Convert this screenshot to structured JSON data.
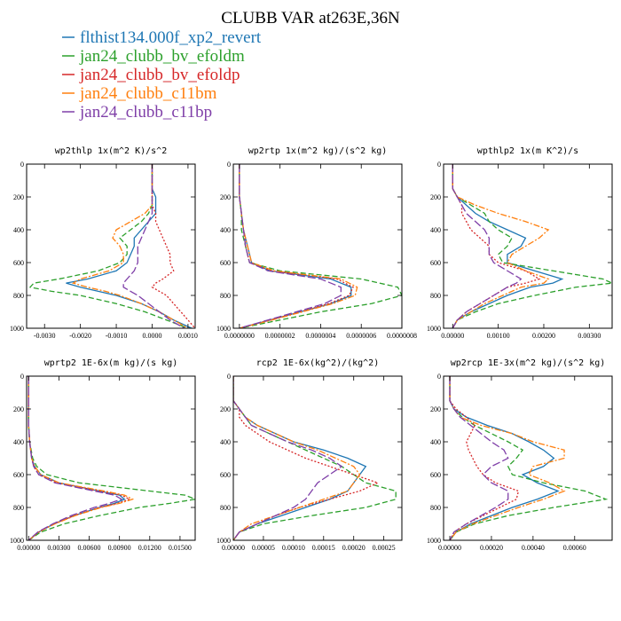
{
  "figure_title": "CLUBB VAR at263E,36N",
  "legend": [
    {
      "name": "flthist134.000f_xp2_revert",
      "color": "#1f77b4",
      "dash": "solid"
    },
    {
      "name": "jan24_clubb_bv_efoldm",
      "color": "#2ca02c",
      "dash": "dashed"
    },
    {
      "name": "jan24_clubb_bv_efoldp",
      "color": "#d62728",
      "dash": "dotted"
    },
    {
      "name": "jan24_clubb_c11bm",
      "color": "#ff7f0e",
      "dash": "dashdot"
    },
    {
      "name": "jan24_clubb_c11bp",
      "color": "#7f3fa8",
      "dash": "longdash"
    }
  ],
  "chart_data": [
    {
      "type": "line",
      "title": "wp2thlp  1x(m^2 K)/s^2",
      "xlim": [
        -0.0035,
        0.0012
      ],
      "ylim": [
        1000,
        0
      ],
      "xticks": [
        -0.003,
        -0.002,
        -0.001,
        0,
        0.001
      ],
      "xtick_labels": [
        "-0.0030",
        "-0.0020",
        "-0.0010",
        "0.0000",
        "0.0010"
      ],
      "yticks": [
        0,
        200,
        400,
        600,
        800,
        1000
      ],
      "ytick_labels": [
        "0",
        "200",
        "400",
        "600",
        "800",
        "1000"
      ],
      "y": [
        0,
        150,
        200,
        250,
        300,
        350,
        400,
        450,
        500,
        550,
        600,
        650,
        700,
        725,
        750,
        775,
        800,
        850,
        900,
        950,
        1000
      ],
      "series": [
        {
          "values": [
            0,
            0,
            0.0001,
            0.0001,
            0.0001,
            -0.0001,
            -0.0003,
            -0.0005,
            -0.0005,
            -0.0006,
            -0.0007,
            -0.001,
            -0.0018,
            -0.0024,
            -0.002,
            -0.0015,
            -0.001,
            -0.0003,
            0.0002,
            0.0006,
            0.0011
          ]
        },
        {
          "values": [
            0,
            0,
            0,
            0,
            -0.0001,
            -0.0003,
            -0.0006,
            -0.0009,
            -0.0007,
            -0.0007,
            -0.0009,
            -0.0015,
            -0.0026,
            -0.0033,
            -0.0034,
            -0.0028,
            -0.002,
            -0.001,
            -0.0002,
            0.0004,
            0.001
          ]
        },
        {
          "values": [
            0,
            0,
            0,
            0,
            0.0001,
            0.0001,
            0.0002,
            0.0003,
            0.0004,
            0.0005,
            0.0005,
            0.0006,
            0.0003,
            0.0001,
            0,
            0.0002,
            0.0004,
            0.0006,
            0.0008,
            0.001,
            0.0012
          ]
        },
        {
          "values": [
            0,
            0,
            0,
            0,
            -0.0002,
            -0.0006,
            -0.001,
            -0.0011,
            -0.0009,
            -0.0008,
            -0.0008,
            -0.0012,
            -0.002,
            -0.0022,
            -0.0018,
            -0.0013,
            -0.0009,
            -0.0003,
            0.0002,
            0.0006,
            0.001
          ]
        },
        {
          "values": [
            0,
            0,
            0,
            0,
            0,
            -0.0001,
            -0.0002,
            -0.0003,
            -0.0004,
            -0.0004,
            -0.0004,
            -0.0005,
            -0.0007,
            -0.0008,
            -0.0008,
            -0.0006,
            -0.0004,
            -0.0001,
            0.0002,
            0.0005,
            0.0009
          ]
        }
      ]
    },
    {
      "type": "line",
      "title": "wp2rtp  1x(m^2 kg)/(s^2 kg)",
      "xlim": [
        -3e-08,
        8e-07
      ],
      "ylim": [
        1000,
        0
      ],
      "xticks": [
        0,
        2e-07,
        4e-07,
        6e-07,
        8e-07
      ],
      "xtick_labels": [
        "0.0000000",
        "0.0000002",
        "0.0000004",
        "0.0000006",
        "0.0000008"
      ],
      "yticks": [
        0,
        200,
        400,
        600,
        800,
        1000
      ],
      "ytick_labels": [
        "0",
        "200",
        "400",
        "600",
        "800",
        "1000"
      ],
      "y": [
        0,
        200,
        300,
        400,
        500,
        600,
        650,
        700,
        750,
        800,
        850,
        900,
        950,
        1000
      ],
      "series": [
        {
          "values": [
            0,
            0,
            1e-08,
            2e-08,
            4e-08,
            6e-08,
            1.5e-07,
            4.5e-07,
            5.5e-07,
            5.5e-07,
            4.5e-07,
            3e-07,
            1.5e-07,
            0
          ]
        },
        {
          "values": [
            0,
            0,
            1e-08,
            1e-08,
            3e-08,
            5e-08,
            2e-07,
            6e-07,
            7.8e-07,
            8e-07,
            6.5e-07,
            4e-07,
            2e-07,
            0
          ]
        },
        {
          "values": [
            0,
            0,
            1e-08,
            2e-08,
            3e-08,
            5e-08,
            1.6e-07,
            4.8e-07,
            5.6e-07,
            5.4e-07,
            4.4e-07,
            3e-07,
            1.5e-07,
            0
          ]
        },
        {
          "values": [
            0,
            0,
            1e-08,
            2e-08,
            4e-08,
            6e-08,
            1.7e-07,
            5e-07,
            5.8e-07,
            5.7e-07,
            4.6e-07,
            3.1e-07,
            1.6e-07,
            0
          ]
        },
        {
          "values": [
            0,
            0,
            1e-08,
            2e-08,
            3e-08,
            5e-08,
            1.4e-07,
            4e-07,
            5e-07,
            5e-07,
            4.2e-07,
            2.8e-07,
            1.4e-07,
            0
          ]
        }
      ]
    },
    {
      "type": "line",
      "title": "wpthlp2  1x(m K^2)/s",
      "xlim": [
        -0.0002,
        0.0035
      ],
      "ylim": [
        1000,
        0
      ],
      "xticks": [
        0,
        0.001,
        0.002,
        0.003
      ],
      "xtick_labels": [
        "0.00000",
        "0.00100",
        "0.00200",
        "0.00300"
      ],
      "yticks": [
        0,
        200,
        400,
        600,
        800,
        1000
      ],
      "ytick_labels": [
        "0",
        "200",
        "400",
        "600",
        "800",
        "1000"
      ],
      "y": [
        0,
        150,
        200,
        250,
        300,
        350,
        400,
        450,
        500,
        550,
        600,
        650,
        700,
        725,
        750,
        800,
        850,
        900,
        950,
        1000
      ],
      "series": [
        {
          "values": [
            0,
            0,
            0.0001,
            0.0003,
            0.0005,
            0.0008,
            0.0012,
            0.0016,
            0.0015,
            0.0012,
            0.0012,
            0.0018,
            0.0024,
            0.0022,
            0.0017,
            0.0012,
            0.0008,
            0.0004,
            0.0001,
            0
          ]
        },
        {
          "values": [
            0,
            0,
            0.0001,
            0.0004,
            0.0007,
            0.0008,
            0.001,
            0.0013,
            0.0012,
            0.001,
            0.0011,
            0.0022,
            0.0033,
            0.0035,
            0.0027,
            0.0018,
            0.001,
            0.0005,
            0.0001,
            0
          ]
        },
        {
          "values": [
            0,
            0,
            0.0001,
            0.0002,
            0.0002,
            0.0003,
            0.0004,
            0.0006,
            0.0008,
            0.0008,
            0.001,
            0.0016,
            0.0019,
            0.0016,
            0.0012,
            0.0009,
            0.0006,
            0.0003,
            0.0001,
            0
          ]
        },
        {
          "values": [
            0,
            0,
            0.0001,
            0.0005,
            0.001,
            0.0016,
            0.0021,
            0.0019,
            0.0016,
            0.0013,
            0.0012,
            0.0016,
            0.0021,
            0.002,
            0.0015,
            0.0011,
            0.0007,
            0.0004,
            0.0001,
            0
          ]
        },
        {
          "values": [
            0,
            0,
            0.0001,
            0.0002,
            0.0003,
            0.0005,
            0.0007,
            0.0008,
            0.0008,
            0.0008,
            0.0009,
            0.0012,
            0.0015,
            0.0014,
            0.0012,
            0.0009,
            0.0006,
            0.0003,
            0.0001,
            0
          ]
        }
      ]
    },
    {
      "type": "line",
      "title": "wprtp2  1E-6x(m kg)/(s kg)",
      "xlim": [
        -0.0002,
        0.0165
      ],
      "ylim": [
        1000,
        0
      ],
      "xticks": [
        0,
        0.003,
        0.006,
        0.009,
        0.012,
        0.015
      ],
      "xtick_labels": [
        "0.00000",
        "0.00300",
        "0.00600",
        "0.00900",
        "0.01200",
        "0.01500"
      ],
      "yticks": [
        0,
        200,
        400,
        600,
        800,
        1000
      ],
      "ytick_labels": [
        "0",
        "200",
        "400",
        "600",
        "800",
        "1000"
      ],
      "y": [
        0,
        300,
        400,
        500,
        550,
        600,
        650,
        700,
        725,
        750,
        775,
        800,
        850,
        900,
        950,
        1000
      ],
      "series": [
        {
          "values": [
            0,
            0,
            0.0001,
            0.0003,
            0.0006,
            0.0012,
            0.003,
            0.007,
            0.009,
            0.0095,
            0.0085,
            0.007,
            0.0045,
            0.0025,
            0.001,
            0
          ]
        },
        {
          "values": [
            0,
            0,
            0.0001,
            0.0004,
            0.0008,
            0.0018,
            0.005,
            0.012,
            0.0155,
            0.0165,
            0.014,
            0.011,
            0.007,
            0.0035,
            0.0012,
            0
          ]
        },
        {
          "values": [
            0,
            0,
            0.0001,
            0.0003,
            0.0005,
            0.001,
            0.0028,
            0.007,
            0.0092,
            0.01,
            0.0088,
            0.007,
            0.0045,
            0.0025,
            0.001,
            0
          ]
        },
        {
          "values": [
            0,
            0,
            0.0001,
            0.0003,
            0.0006,
            0.0012,
            0.003,
            0.0075,
            0.0095,
            0.0103,
            0.009,
            0.0072,
            0.0046,
            0.0026,
            0.001,
            0
          ]
        },
        {
          "values": [
            0,
            0,
            0.0001,
            0.0003,
            0.0005,
            0.001,
            0.0026,
            0.0065,
            0.0085,
            0.0092,
            0.008,
            0.0065,
            0.0042,
            0.0024,
            0.0009,
            0
          ]
        }
      ]
    },
    {
      "type": "line",
      "title": "rcp2  1E-6x(kg^2)/(kg^2)",
      "xlim": [
        0,
        0.00028
      ],
      "ylim": [
        1000,
        0
      ],
      "xticks": [
        0,
        5e-05,
        0.0001,
        0.00015,
        0.0002,
        0.00025
      ],
      "xtick_labels": [
        "0.00000",
        "0.00005",
        "0.00010",
        "0.00015",
        "0.00020",
        "0.00025"
      ],
      "yticks": [
        0,
        200,
        400,
        600,
        800,
        1000
      ],
      "ytick_labels": [
        "0",
        "200",
        "400",
        "600",
        "800",
        "1000"
      ],
      "y": [
        0,
        150,
        200,
        250,
        300,
        350,
        400,
        450,
        500,
        550,
        600,
        650,
        700,
        750,
        800,
        850,
        900,
        950,
        1000
      ],
      "series": [
        {
          "values": [
            0,
            0,
            1e-05,
            2e-05,
            4e-05,
            7e-05,
            0.0001,
            0.00015,
            0.00019,
            0.00022,
            0.00021,
            0.0002,
            0.00019,
            0.00016,
            0.00012,
            8e-05,
            4e-05,
            1e-05,
            0
          ]
        },
        {
          "values": [
            0,
            0,
            1e-05,
            2e-05,
            3e-05,
            6e-05,
            9e-05,
            0.00012,
            0.00015,
            0.00018,
            0.0002,
            0.00022,
            0.00027,
            0.00027,
            0.00022,
            0.00013,
            5e-05,
            1e-05,
            0
          ]
        },
        {
          "values": [
            0,
            0,
            1e-05,
            1e-05,
            2e-05,
            4e-05,
            6e-05,
            9e-05,
            0.00012,
            0.00016,
            0.0002,
            0.00024,
            0.00021,
            0.00016,
            0.00011,
            7e-05,
            4e-05,
            1e-05,
            0
          ]
        },
        {
          "values": [
            0,
            0,
            1e-05,
            2e-05,
            4e-05,
            7e-05,
            0.0001,
            0.00014,
            0.00017,
            0.0002,
            0.00021,
            0.0002,
            0.00019,
            0.00015,
            0.00011,
            7e-05,
            3e-05,
            1e-05,
            0
          ]
        },
        {
          "values": [
            0,
            0,
            1e-05,
            2e-05,
            3e-05,
            6e-05,
            9e-05,
            0.00013,
            0.00016,
            0.00018,
            0.00016,
            0.00014,
            0.00013,
            0.00012,
            0.0001,
            7e-05,
            4e-05,
            1e-05,
            0
          ]
        }
      ]
    },
    {
      "type": "line",
      "title": "wp2rcp  1E-3x(m^2 kg)/(s^2 kg)",
      "xlim": [
        -3e-05,
        0.00078
      ],
      "ylim": [
        1000,
        0
      ],
      "xticks": [
        0,
        0.0002,
        0.0004,
        0.0006
      ],
      "xtick_labels": [
        "0.00000",
        "0.00020",
        "0.00040",
        "0.00060"
      ],
      "yticks": [
        0,
        200,
        400,
        600,
        800,
        1000
      ],
      "ytick_labels": [
        "0",
        "200",
        "400",
        "600",
        "800",
        "1000"
      ],
      "y": [
        0,
        150,
        200,
        250,
        300,
        350,
        400,
        450,
        500,
        550,
        600,
        650,
        700,
        750,
        800,
        850,
        900,
        950,
        1000
      ],
      "series": [
        {
          "values": [
            0,
            0,
            2e-05,
            8e-05,
            0.00018,
            0.0003,
            0.00038,
            0.00045,
            0.0005,
            0.00045,
            0.00035,
            0.00042,
            0.00052,
            0.00042,
            0.0003,
            0.0002,
            0.0001,
            3e-05,
            0
          ]
        },
        {
          "values": [
            0,
            0,
            2e-05,
            6e-05,
            0.00012,
            0.0002,
            0.00028,
            0.00035,
            0.00032,
            0.00028,
            0.0003,
            0.00045,
            0.00065,
            0.00075,
            0.0005,
            0.00028,
            0.00012,
            3e-05,
            0
          ]
        },
        {
          "values": [
            0,
            0,
            3e-05,
            8e-05,
            0.00012,
            0.0001,
            8e-05,
            9e-05,
            0.00011,
            0.00013,
            0.00016,
            0.00022,
            0.00033,
            0.00032,
            0.00024,
            0.00016,
            8e-05,
            2e-05,
            0
          ]
        },
        {
          "values": [
            0,
            0,
            2e-05,
            5e-05,
            0.00015,
            0.0003,
            0.0004,
            0.00055,
            0.00055,
            0.0004,
            0.00038,
            0.00048,
            0.00055,
            0.00045,
            0.00033,
            0.00022,
            0.00011,
            3e-05,
            0
          ]
        },
        {
          "values": [
            0,
            0,
            2e-05,
            5e-05,
            0.0001,
            0.00015,
            0.0002,
            0.00026,
            0.00028,
            0.0002,
            0.00016,
            0.0002,
            0.00028,
            0.00028,
            0.00022,
            0.00015,
            8e-05,
            2e-05,
            0
          ]
        }
      ]
    }
  ]
}
